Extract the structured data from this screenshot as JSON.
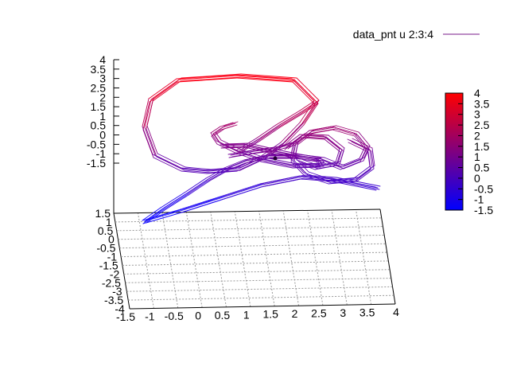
{
  "chart_data": {
    "type": "line",
    "legend": {
      "label": "data_pnt u 2:3:4",
      "placement": "top-right",
      "line_color": "#7a1a8a"
    },
    "x_axis": {
      "range": [
        -1.5,
        4
      ],
      "ticks": [
        "-1.5",
        "-1",
        "-0.5",
        "0",
        "0.5",
        "1",
        "1.5",
        "2",
        "2.5",
        "3",
        "3.5",
        "4"
      ]
    },
    "y_axis": {
      "range": [
        -4,
        1.5
      ],
      "ticks": [
        "1.5",
        "1",
        "0.5",
        "0",
        "-0.5",
        "-1",
        "-1.5",
        "-2",
        "-2.5",
        "-3",
        "-3.5",
        "-4"
      ]
    },
    "z_axis": {
      "range": [
        -1.5,
        4
      ],
      "ticks": [
        "4",
        "3.5",
        "3",
        "2.5",
        "2",
        "1.5",
        "1",
        "0.5",
        "0",
        "-0.5",
        "-1",
        "-1.5"
      ]
    },
    "colorbar": {
      "range": [
        -1.5,
        4
      ],
      "ticks": [
        "4",
        "3.5",
        "3",
        "2.5",
        "2",
        "1.5",
        "1",
        "0.5",
        "0",
        "-0.5",
        "-1",
        "-1.5"
      ],
      "low_color": "#0000ff",
      "high_color": "#ff0000"
    },
    "grid": true,
    "series": [
      {
        "name": "data_pnt u 2:3:4",
        "color_mapped_by": "z"
      }
    ]
  }
}
